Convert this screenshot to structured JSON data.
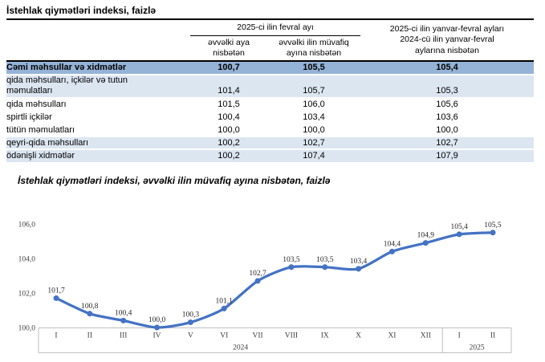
{
  "page": {
    "title": "İstehlak qiymətləri indeksi, faizlə"
  },
  "table": {
    "header": {
      "group": "2025-ci ilin fevral ayı",
      "sub1": "əvvəlki aya\nnisbətən",
      "sub2": "əvvəlki ilin müvafiq\nayına nisbətən",
      "col3": "2025-ci ilin yanvar-fevral ayları\n2024-cü ilin yanvar-fevral\naylarına nisbətən"
    },
    "rows": [
      {
        "label": "Cəmi məhsullar və xidmətlər",
        "values": [
          "100,7",
          "105,5",
          "105,4"
        ]
      },
      {
        "label": "qida məhsulları, içkilər və tutun\nməmulatları",
        "values": [
          "101,4",
          "105,7",
          "105,3"
        ]
      },
      {
        "label": "qida məhsulları",
        "values": [
          "101,5",
          "106,0",
          "105,6"
        ]
      },
      {
        "label": "spirtli içkilər",
        "values": [
          "100,4",
          "103,4",
          "103,6"
        ]
      },
      {
        "label": "tütün məmulatları",
        "values": [
          "100,0",
          "100,0",
          "100,0"
        ]
      },
      {
        "label": "qeyri-qida məhsulları",
        "values": [
          "100,2",
          "102,7",
          "102,7"
        ]
      },
      {
        "label": "ödənişli xidmətlər",
        "values": [
          "100,2",
          "107,4",
          "107,9"
        ]
      }
    ]
  },
  "chart_data": {
    "type": "line",
    "title": "İstehlak qiymətləri indeksi, əvvəlki ilin müvafiq ayına nisbətən, faizlə",
    "categories": [
      "I",
      "II",
      "III",
      "IV",
      "V",
      "VI",
      "VII",
      "VIII",
      "IX",
      "X",
      "XI",
      "XII",
      "I",
      "II"
    ],
    "year_groups": [
      {
        "label": "2024",
        "from": 0,
        "to": 11
      },
      {
        "label": "2025",
        "from": 12,
        "to": 13
      }
    ],
    "values": [
      101.7,
      100.8,
      100.4,
      100.0,
      100.3,
      101.1,
      102.7,
      103.5,
      103.5,
      103.4,
      104.4,
      104.9,
      105.4,
      105.5
    ],
    "labels": [
      "101,7",
      "100,8",
      "100,4",
      "100,0",
      "100,3",
      "101,1",
      "102,7",
      "103,5",
      "103,5",
      "103,4",
      "104,4",
      "104,9",
      "105,4",
      "105,5"
    ],
    "ylim": [
      100.0,
      106.0
    ],
    "ytick_values": [
      100,
      102,
      104,
      106
    ],
    "yticks": [
      "100,0",
      "102,0",
      "104,0",
      "106,0"
    ],
    "grid": false,
    "legend": "none",
    "line_color": "#4472C4",
    "axis_color": "#BFBFBF"
  },
  "colors": {
    "total_row_bg": "#95B3D7",
    "sub_row_bg": "#DCE6F1",
    "series_line": "#4472C4",
    "axis_line": "#BFBFBF"
  }
}
